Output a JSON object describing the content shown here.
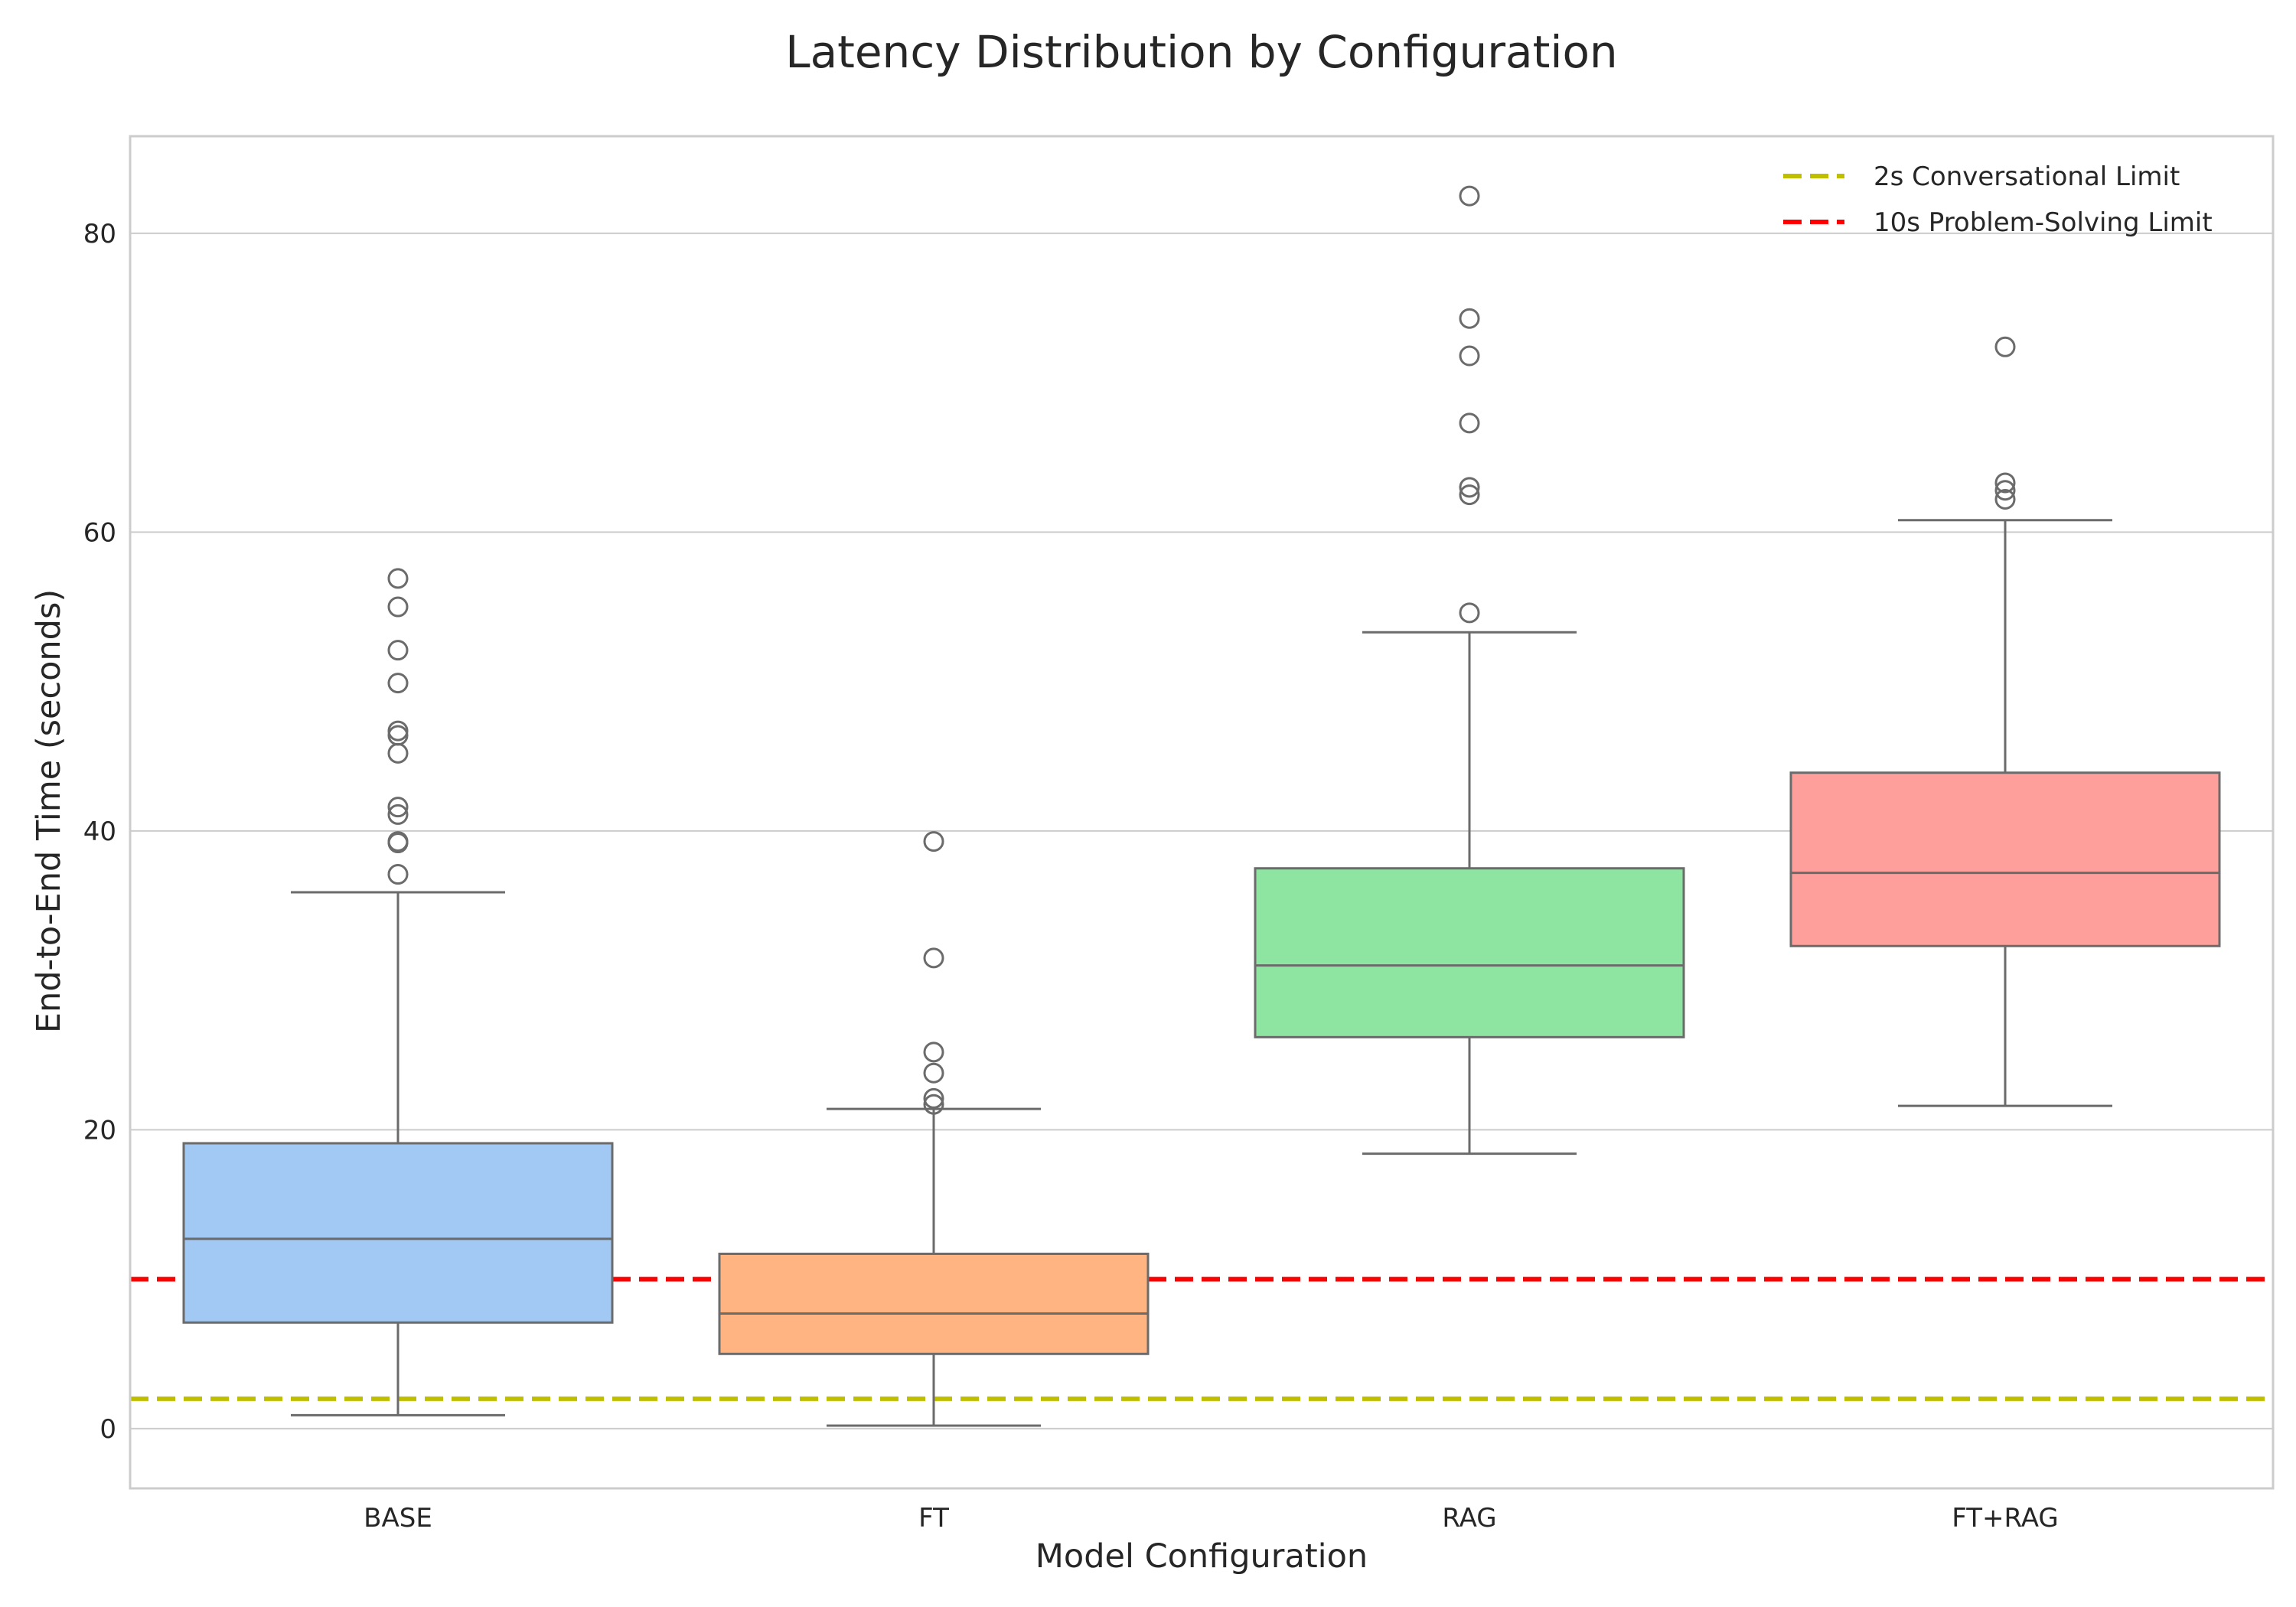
{
  "chart_data": {
    "type": "box",
    "title": "Latency Distribution by Configuration",
    "xlabel": "Model Configuration",
    "ylabel": "End-to-End Time (seconds)",
    "categories": [
      "BASE",
      "FT",
      "RAG",
      "FT+RAG"
    ],
    "ylim": [
      -4,
      86.5
    ],
    "yticks": [
      0,
      20,
      40,
      60,
      80
    ],
    "grid": "horizontal",
    "legend_position": "top-right",
    "boxes": [
      {
        "category": "BASE",
        "whisker_low": 0.9,
        "q1": 7.1,
        "median": 12.7,
        "q3": 19.1,
        "whisker_high": 35.9,
        "outliers": [
          37.1,
          39.2,
          39.3,
          41.1,
          41.6,
          45.2,
          46.4,
          46.7,
          49.9,
          52.1,
          55.0,
          56.9
        ],
        "color": "#a1c9f4"
      },
      {
        "category": "FT",
        "whisker_low": 0.2,
        "q1": 5.0,
        "median": 7.7,
        "q3": 11.7,
        "whisker_high": 21.4,
        "outliers": [
          21.7,
          22.1,
          23.8,
          25.2,
          31.5,
          39.3
        ],
        "color": "#ffb482"
      },
      {
        "category": "RAG",
        "whisker_low": 18.4,
        "q1": 26.2,
        "median": 31.0,
        "q3": 37.5,
        "whisker_high": 53.3,
        "outliers": [
          54.6,
          62.5,
          63.0,
          67.3,
          71.8,
          74.3,
          82.5
        ],
        "color": "#8de5a1"
      },
      {
        "category": "FT+RAG",
        "whisker_low": 21.6,
        "q1": 32.3,
        "median": 37.2,
        "q3": 43.9,
        "whisker_high": 60.8,
        "outliers": [
          62.2,
          62.8,
          63.3,
          72.4
        ],
        "color": "#ff9f9b"
      }
    ],
    "reference_lines": [
      {
        "name": "2s Conversational Limit",
        "y": 2,
        "color": "#bfbf00",
        "style": "dashed"
      },
      {
        "name": "10s Problem-Solving Limit",
        "y": 10,
        "color": "#ff0000",
        "style": "dashed"
      }
    ]
  }
}
